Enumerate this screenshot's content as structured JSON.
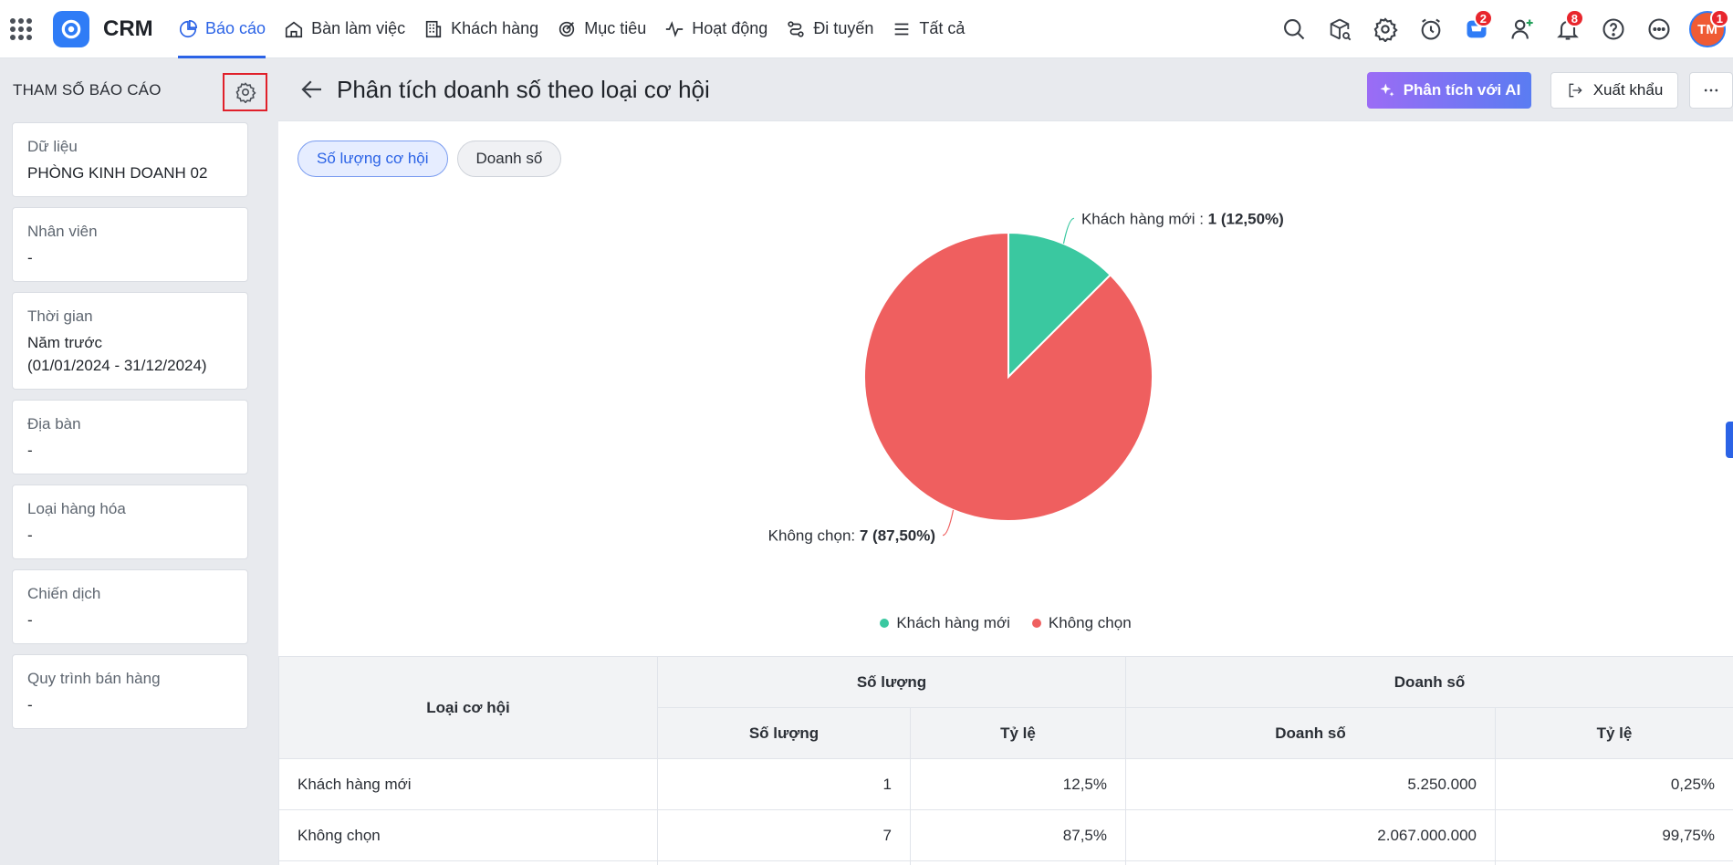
{
  "brand": "CRM",
  "colors": {
    "accent": "#2b63e6",
    "series_new": "#3ac8a0",
    "series_none": "#ef5f5f",
    "badge": "#e8262d"
  },
  "nav": {
    "items": [
      {
        "label": "Báo cáo",
        "icon": "chart-pie-icon",
        "active": true
      },
      {
        "label": "Bàn làm việc",
        "icon": "home-icon"
      },
      {
        "label": "Khách hàng",
        "icon": "building-icon"
      },
      {
        "label": "Mục tiêu",
        "icon": "target-icon"
      },
      {
        "label": "Hoạt động",
        "icon": "activity-icon"
      },
      {
        "label": "Đi tuyến",
        "icon": "route-icon"
      },
      {
        "label": "Tất cả",
        "icon": "menu-icon"
      }
    ]
  },
  "topbar": {
    "cart_badge": "2",
    "notify_badge": "8",
    "avatar_initials": "TM",
    "avatar_badge": "1"
  },
  "sidebar": {
    "title": "THAM SỐ BÁO CÁO",
    "cards": [
      {
        "label": "Dữ liệu",
        "value": "PHÒNG KINH DOANH 02"
      },
      {
        "label": "Nhân viên",
        "value": "-"
      },
      {
        "label": "Thời gian",
        "value": "Năm trước",
        "value2": "(01/01/2024 - 31/12/2024)"
      },
      {
        "label": "Địa bàn",
        "value": "-"
      },
      {
        "label": "Loại hàng hóa",
        "value": "-"
      },
      {
        "label": "Chiến dịch",
        "value": "-"
      },
      {
        "label": "Quy trình bán hàng",
        "value": "-"
      }
    ]
  },
  "header": {
    "title": "Phân tích doanh số theo loại cơ hội",
    "ai_button": "Phân tích với AI",
    "export_button": "Xuất khẩu"
  },
  "tabs": [
    {
      "label": "Số lượng cơ hội",
      "active": true
    },
    {
      "label": "Doanh số",
      "active": false
    }
  ],
  "chart_data": {
    "type": "pie",
    "series": [
      {
        "name": "Khách hàng mới",
        "value": 1,
        "percent": "12,50%",
        "label_prefix": "Khách hàng mới : ",
        "label_value": "1 (12,50%)"
      },
      {
        "name": "Không chọn",
        "value": 7,
        "percent": "87,50%",
        "label_prefix": "Không chọn: ",
        "label_value": "7 (87,50%)"
      }
    ],
    "legend": "bottom"
  },
  "table": {
    "col_type": "Loại cơ hội",
    "group_qty": "Số lượng",
    "group_rev": "Doanh số",
    "sub_qty": "Số lượng",
    "sub_qty_ratio": "Tỷ lệ",
    "sub_rev": "Doanh số",
    "sub_rev_ratio": "Tỷ lệ",
    "rows": [
      {
        "type": "Khách hàng mới",
        "qty": "1",
        "qty_ratio": "12,5%",
        "rev": "5.250.000",
        "rev_ratio": "0,25%"
      },
      {
        "type": "Không chọn",
        "qty": "7",
        "qty_ratio": "87,5%",
        "rev": "2.067.000.000",
        "rev_ratio": "99,75%"
      }
    ]
  }
}
